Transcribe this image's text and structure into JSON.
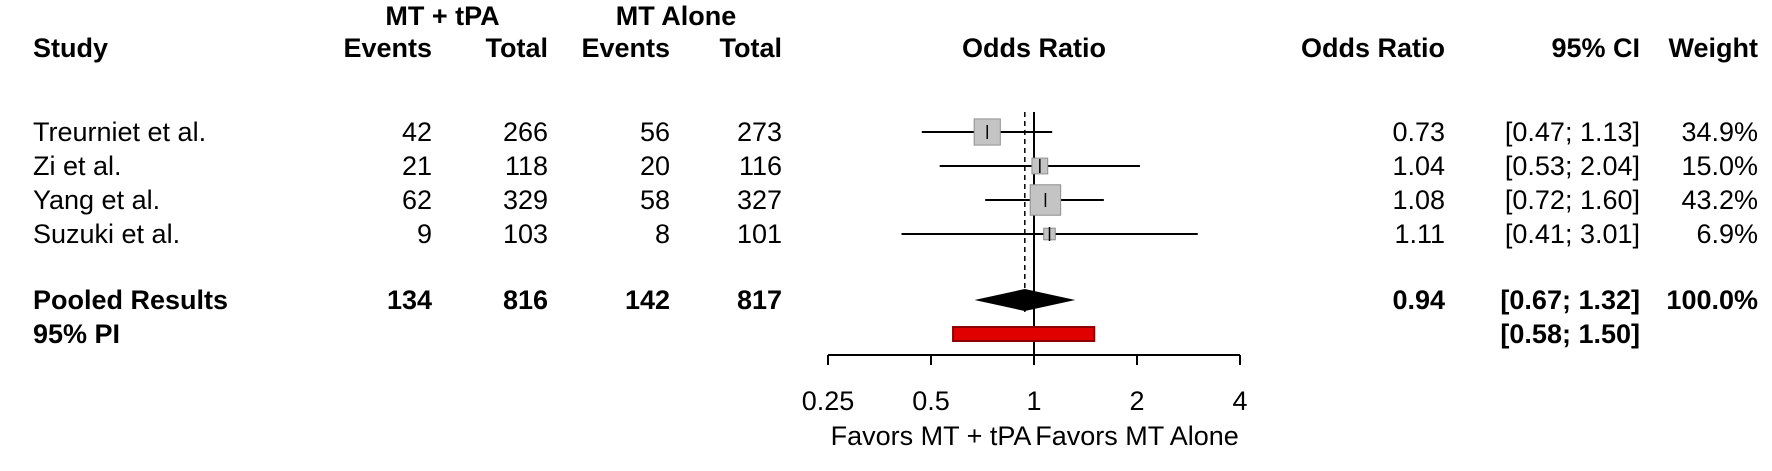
{
  "chart_data": {
    "type": "forest",
    "group_headers": {
      "group1": "MT + tPA",
      "group2": "MT Alone"
    },
    "columns": {
      "study": "Study",
      "events1": "Events",
      "total1": "Total",
      "events2": "Events",
      "total2": "Total",
      "plot": "Odds Ratio",
      "or": "Odds Ratio",
      "ci": "95% CI",
      "weight": "Weight"
    },
    "studies": [
      {
        "name": "Treurniet et al.",
        "events1": "42",
        "total1": "266",
        "events2": "56",
        "total2": "273",
        "or": 0.73,
        "ci_low": 0.47,
        "ci_high": 1.13,
        "or_label": "0.73",
        "ci_label": "[0.47; 1.13]",
        "weight": 34.9,
        "weight_label": "34.9%"
      },
      {
        "name": "Zi et al.",
        "events1": "21",
        "total1": "118",
        "events2": "20",
        "total2": "116",
        "or": 1.04,
        "ci_low": 0.53,
        "ci_high": 2.04,
        "or_label": "1.04",
        "ci_label": "[0.53; 2.04]",
        "weight": 15.0,
        "weight_label": "15.0%"
      },
      {
        "name": "Yang et al.",
        "events1": "62",
        "total1": "329",
        "events2": "58",
        "total2": "327",
        "or": 1.08,
        "ci_low": 0.72,
        "ci_high": 1.6,
        "or_label": "1.08",
        "ci_label": "[0.72; 1.60]",
        "weight": 43.2,
        "weight_label": "43.2%"
      },
      {
        "name": "Suzuki et al.",
        "events1": "9",
        "total1": "103",
        "events2": "8",
        "total2": "101",
        "or": 1.11,
        "ci_low": 0.41,
        "ci_high": 3.01,
        "or_label": "1.11",
        "ci_label": "[0.41; 3.01]",
        "weight": 6.9,
        "weight_label": "6.9%"
      }
    ],
    "pooled": {
      "name": "Pooled Results",
      "events1": "134",
      "total1": "816",
      "events2": "142",
      "total2": "817",
      "or": 0.94,
      "ci_low": 0.67,
      "ci_high": 1.32,
      "or_label": "0.94",
      "ci_label": "[0.67; 1.32]",
      "weight_label": "100.0%"
    },
    "prediction_interval": {
      "name": "95% PI",
      "ci_low": 0.58,
      "ci_high": 1.5,
      "ci_label": "[0.58; 1.50]"
    },
    "axis": {
      "scale": "log",
      "min": 0.25,
      "max": 4,
      "ticks": [
        0.25,
        0.5,
        1,
        2,
        4
      ],
      "tick_labels": [
        "0.25",
        "0.5",
        "1",
        "2",
        "4"
      ],
      "ref_line": 1,
      "dashed_line": 0.94
    },
    "favors": {
      "left": "Favors MT + tPA",
      "right": "Favors MT Alone"
    },
    "colors": {
      "square": "#c4c4c4",
      "square_border": "#8f8f8f",
      "ci_line": "#000000",
      "diamond": "#000000",
      "pi_bar": "#e00000",
      "pi_border": "#8b0000",
      "axis": "#000000"
    }
  }
}
